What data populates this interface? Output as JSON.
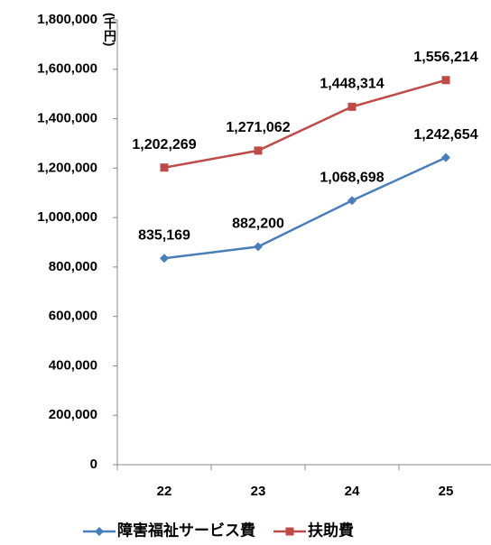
{
  "chart_data": {
    "type": "line",
    "y_unit": "(千円)",
    "categories": [
      "22",
      "23",
      "24",
      "25"
    ],
    "series": [
      {
        "name": "障害福祉サービス費",
        "color": "#4a7ebb",
        "marker": "diamond",
        "values": [
          835169,
          882200,
          1068698,
          1242654
        ],
        "value_labels": [
          "835,169",
          "882,200",
          "1,068,698",
          "1,242,654"
        ]
      },
      {
        "name": "扶助費",
        "color": "#be4b48",
        "marker": "square",
        "values": [
          1202269,
          1271062,
          1448314,
          1556214
        ],
        "value_labels": [
          "1,202,269",
          "1,271,062",
          "1,448,314",
          "1,556,214"
        ]
      }
    ],
    "ylim": [
      0,
      1800000
    ],
    "yticks": [
      0,
      {
        "value": 200000,
        "label": "200,000"
      },
      {
        "value": 400000,
        "label": "400,000"
      },
      {
        "value": 600000,
        "label": "600,000"
      },
      {
        "value": 800000,
        "label": "800,000"
      },
      {
        "value": 1000000,
        "label": "1,000,000"
      },
      {
        "value": 1200000,
        "label": "1,200,000"
      },
      {
        "value": 1400000,
        "label": "1,400,000"
      },
      {
        "value": 1600000,
        "label": "1,600,000"
      },
      {
        "value": 1800000,
        "label": "1,800,000"
      }
    ],
    "grid": false,
    "legend": "bottom"
  }
}
